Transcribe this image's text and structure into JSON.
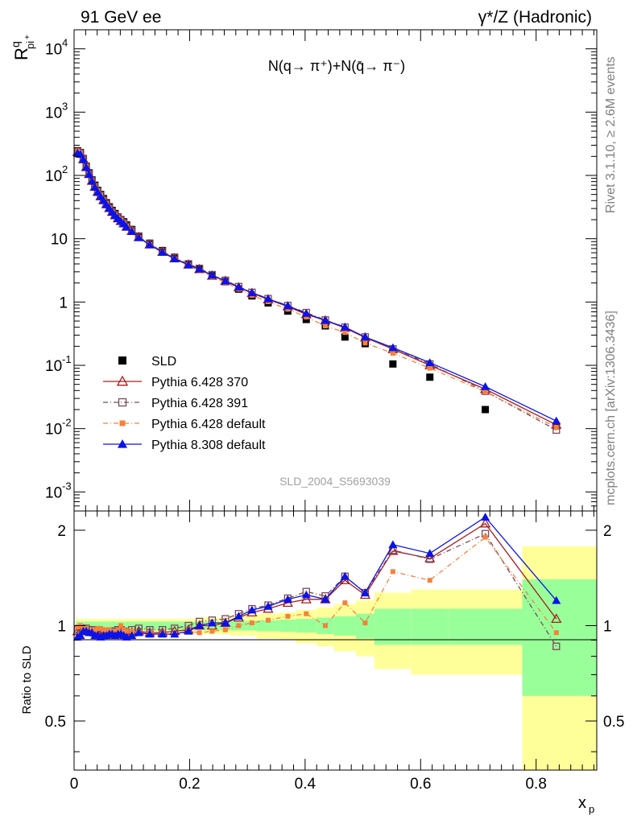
{
  "header": {
    "left_label": "91 GeV ee",
    "right_label": "γ*/Z (Hadronic)"
  },
  "side_labels": {
    "rivet": "Rivet 3.1.10, ≥ 2.6M events",
    "mcplots": "mcplots.cern.ch [arXiv:1306.3436]"
  },
  "watermark": "SLD_2004_S5693039",
  "chart_data": [
    {
      "type": "scatter",
      "panel": "main",
      "title": "N(q→ π⁺)+N(q̄→ π⁻)",
      "ylabel": "R^q_{pi^+}",
      "yscale": "log",
      "ylim": [
        0.0005,
        20000
      ],
      "xlim": [
        0,
        0.905
      ],
      "y_tick_labels": [
        "10^{-3}",
        "10^{-2}",
        "10^{-1}",
        "1",
        "10",
        "10^{2}",
        "10^{3}",
        "10^{4}"
      ],
      "legend_position": "bottom-left",
      "x": [
        0.006,
        0.011,
        0.016,
        0.021,
        0.026,
        0.031,
        0.036,
        0.041,
        0.046,
        0.051,
        0.056,
        0.061,
        0.066,
        0.071,
        0.076,
        0.081,
        0.086,
        0.091,
        0.1,
        0.112,
        0.131,
        0.153,
        0.174,
        0.198,
        0.217,
        0.239,
        0.262,
        0.285,
        0.308,
        0.336,
        0.37,
        0.402,
        0.435,
        0.469,
        0.504,
        0.552,
        0.616,
        0.712,
        0.835
      ],
      "series": [
        {
          "name": "SLD",
          "marker": "filled-square",
          "color": "#000000",
          "values": [
            245,
            230,
            185,
            140,
            110,
            85,
            70,
            58,
            50,
            43,
            37,
            32,
            28,
            25,
            22,
            20,
            18.5,
            16.5,
            14,
            11,
            8.5,
            6.5,
            5.1,
            4.0,
            3.3,
            2.6,
            2.1,
            1.6,
            1.25,
            0.97,
            0.72,
            0.53,
            0.42,
            0.28,
            0.22,
            0.105,
            0.065,
            0.02,
            0.011
          ]
        },
        {
          "name": "Pythia 6.428 370",
          "marker": "open-triangle",
          "color": "#a81c1c",
          "line": "solid",
          "values": [
            235,
            222,
            180,
            135,
            105,
            82,
            66,
            55,
            47,
            40.5,
            35,
            30.5,
            26.5,
            23.5,
            21,
            19,
            17.5,
            15.5,
            13.3,
            10.6,
            8.1,
            6.2,
            4.9,
            3.9,
            3.3,
            2.6,
            2.15,
            1.7,
            1.38,
            1.1,
            0.85,
            0.64,
            0.51,
            0.39,
            0.275,
            0.18,
            0.1,
            0.042,
            0.0115
          ]
        },
        {
          "name": "Pythia 6.428 391",
          "marker": "open-square",
          "color": "#7a4a5a",
          "line": "dash-dot",
          "values": [
            238,
            225,
            182,
            137,
            107,
            83,
            67,
            56,
            48,
            41,
            35.5,
            31,
            27,
            24,
            21.5,
            19.5,
            17.8,
            15.8,
            13.6,
            10.8,
            8.3,
            6.3,
            5.0,
            4.0,
            3.4,
            2.7,
            2.2,
            1.75,
            1.42,
            1.13,
            0.88,
            0.68,
            0.52,
            0.4,
            0.28,
            0.182,
            0.105,
            0.039,
            0.0095
          ]
        },
        {
          "name": "Pythia 6.428 default",
          "marker": "filled-small-square",
          "color": "#f5813b",
          "line": "dash-dot",
          "values": [
            243,
            230,
            182,
            138,
            106,
            83,
            68,
            57,
            49,
            41.5,
            36,
            31,
            27,
            24,
            21.5,
            20,
            18,
            15.8,
            13.5,
            10.5,
            8.1,
            6.1,
            4.8,
            3.85,
            3.1,
            2.5,
            2.05,
            1.6,
            1.27,
            1.01,
            0.77,
            0.58,
            0.42,
            0.33,
            0.225,
            0.155,
            0.09,
            0.038,
            0.0105
          ]
        },
        {
          "name": "Pythia 8.308 default",
          "marker": "filled-triangle",
          "color": "#0b13e8",
          "line": "solid",
          "values": [
            225,
            215,
            178,
            134,
            104,
            81,
            65,
            54,
            46,
            40,
            34.5,
            30,
            26.2,
            23.2,
            20.8,
            18.8,
            17.2,
            15.2,
            13.0,
            10.4,
            8.0,
            6.1,
            4.8,
            3.85,
            3.3,
            2.65,
            2.15,
            1.72,
            1.4,
            1.12,
            0.87,
            0.66,
            0.51,
            0.4,
            0.28,
            0.19,
            0.11,
            0.046,
            0.0132
          ]
        }
      ]
    },
    {
      "type": "scatter",
      "panel": "ratio",
      "ylabel": "Ratio to SLD",
      "xlabel": "x_p",
      "ylim": [
        0.35,
        2.3
      ],
      "xlim": [
        0,
        0.905
      ],
      "x_tick_labels": [
        "0",
        "0.2",
        "0.4",
        "0.6",
        "0.8"
      ],
      "y_tick_labels": [
        "0.5",
        "1",
        "2"
      ],
      "reference_line": 1,
      "bands": {
        "edges": [
          0.003,
          0.009,
          0.014,
          0.019,
          0.024,
          0.029,
          0.034,
          0.039,
          0.044,
          0.049,
          0.054,
          0.059,
          0.064,
          0.069,
          0.074,
          0.079,
          0.084,
          0.089,
          0.094,
          0.106,
          0.118,
          0.143,
          0.163,
          0.185,
          0.211,
          0.224,
          0.254,
          0.27,
          0.3,
          0.316,
          0.356,
          0.384,
          0.42,
          0.45,
          0.488,
          0.52,
          0.584,
          0.648,
          0.776,
          0.905
        ],
        "stat_half_width": [
          0.03,
          0.03,
          0.03,
          0.03,
          0.03,
          0.03,
          0.03,
          0.03,
          0.03,
          0.03,
          0.03,
          0.03,
          0.03,
          0.03,
          0.03,
          0.03,
          0.03,
          0.03,
          0.03,
          0.03,
          0.03,
          0.03,
          0.03,
          0.03,
          0.03,
          0.03,
          0.03,
          0.035,
          0.035,
          0.04,
          0.045,
          0.05,
          0.06,
          0.07,
          0.09,
          0.13,
          0.13,
          0.13,
          0.4,
          0.44
        ],
        "total_half_width": [
          0.055,
          0.05,
          0.05,
          0.05,
          0.05,
          0.05,
          0.05,
          0.05,
          0.05,
          0.05,
          0.05,
          0.05,
          0.05,
          0.05,
          0.05,
          0.05,
          0.05,
          0.05,
          0.05,
          0.05,
          0.05,
          0.05,
          0.05,
          0.05,
          0.06,
          0.06,
          0.06,
          0.07,
          0.07,
          0.09,
          0.1,
          0.12,
          0.14,
          0.17,
          0.2,
          0.27,
          0.3,
          0.3,
          0.78,
          0.79
        ]
      },
      "x": [
        0.006,
        0.011,
        0.016,
        0.021,
        0.026,
        0.031,
        0.036,
        0.041,
        0.046,
        0.051,
        0.056,
        0.061,
        0.066,
        0.071,
        0.076,
        0.081,
        0.086,
        0.091,
        0.1,
        0.112,
        0.131,
        0.153,
        0.174,
        0.198,
        0.217,
        0.239,
        0.262,
        0.285,
        0.308,
        0.336,
        0.37,
        0.402,
        0.435,
        0.469,
        0.504,
        0.552,
        0.616,
        0.712,
        0.835
      ],
      "series": [
        {
          "name": "Pythia 6.428 370",
          "values": [
            0.96,
            0.97,
            0.97,
            0.96,
            0.96,
            0.96,
            0.95,
            0.95,
            0.94,
            0.94,
            0.94,
            0.95,
            0.95,
            0.94,
            0.95,
            0.95,
            0.94,
            0.94,
            0.95,
            0.96,
            0.95,
            0.95,
            0.96,
            0.97,
            1.0,
            1.0,
            1.02,
            1.06,
            1.1,
            1.13,
            1.18,
            1.21,
            1.21,
            1.39,
            1.25,
            1.72,
            1.63,
            2.1,
            1.05
          ]
        },
        {
          "name": "Pythia 6.428 391",
          "values": [
            0.97,
            0.98,
            0.98,
            0.98,
            0.97,
            0.97,
            0.96,
            0.96,
            0.96,
            0.95,
            0.95,
            0.96,
            0.96,
            0.96,
            0.97,
            0.97,
            0.96,
            0.95,
            0.97,
            0.98,
            0.97,
            0.97,
            0.98,
            1.0,
            1.03,
            1.04,
            1.05,
            1.09,
            1.13,
            1.16,
            1.22,
            1.28,
            1.24,
            1.43,
            1.27,
            1.73,
            1.62,
            1.95,
            0.86
          ]
        },
        {
          "name": "Pythia 6.428 default",
          "values": [
            0.99,
            1.0,
            0.98,
            0.98,
            0.96,
            0.97,
            0.97,
            0.98,
            0.98,
            0.97,
            0.97,
            0.97,
            0.96,
            0.96,
            0.97,
            1.0,
            0.97,
            0.96,
            0.96,
            0.95,
            0.95,
            0.94,
            0.94,
            0.96,
            0.95,
            0.96,
            0.97,
            1.0,
            1.02,
            1.04,
            1.07,
            1.09,
            1.0,
            1.18,
            1.02,
            1.48,
            1.39,
            1.9,
            0.95
          ]
        },
        {
          "name": "Pythia 8.308 default",
          "values": [
            0.92,
            0.93,
            0.96,
            0.96,
            0.95,
            0.95,
            0.93,
            0.93,
            0.92,
            0.93,
            0.93,
            0.94,
            0.94,
            0.93,
            0.94,
            0.94,
            0.93,
            0.92,
            0.93,
            0.95,
            0.94,
            0.94,
            0.94,
            0.96,
            1.0,
            1.02,
            1.02,
            1.07,
            1.12,
            1.15,
            1.21,
            1.25,
            1.21,
            1.43,
            1.27,
            1.8,
            1.69,
            2.2,
            1.2
          ]
        }
      ]
    }
  ]
}
